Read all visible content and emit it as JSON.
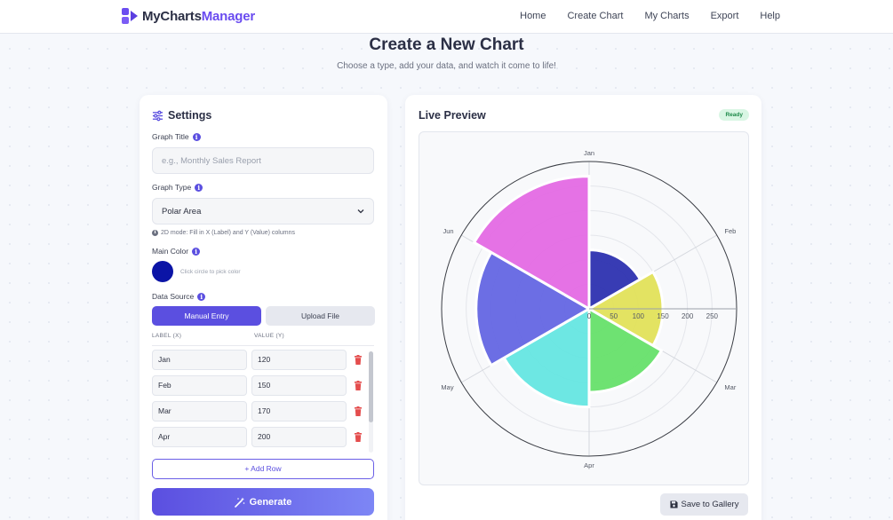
{
  "brand": {
    "part1": "MyCharts",
    "part2": "Manager",
    "accent_color": "#6a4cf0"
  },
  "nav": [
    {
      "id": "home",
      "label": "Home"
    },
    {
      "id": "create",
      "label": "Create Chart"
    },
    {
      "id": "mycharts",
      "label": "My Charts"
    },
    {
      "id": "export",
      "label": "Export"
    },
    {
      "id": "help",
      "label": "Help"
    }
  ],
  "page": {
    "title": "Create a New Chart",
    "subtitle": "Choose a type, add your data, and watch it come to life!"
  },
  "settings": {
    "title": "Settings",
    "graph_title_label": "Graph Title",
    "graph_title_placeholder": "e.g., Monthly Sales Report",
    "graph_title_value": "",
    "graph_type_label": "Graph Type",
    "graph_type_value": "Polar Area",
    "mode_hint": "2D mode: Fill in X (Label) and Y (Value) columns",
    "main_color_label": "Main Color",
    "main_color": "#0b14a6",
    "color_hint": "Click circle to pick color",
    "data_source_label": "Data Source",
    "tabs": [
      {
        "label": "Manual Entry",
        "active": true
      },
      {
        "label": "Upload File",
        "active": false
      }
    ],
    "col_x": "LABEL (X)",
    "col_y": "VALUE (Y)",
    "rows": [
      {
        "x": "Jan",
        "y": "120"
      },
      {
        "x": "Feb",
        "y": "150"
      },
      {
        "x": "Mar",
        "y": "170"
      },
      {
        "x": "Apr",
        "y": "200"
      }
    ],
    "add_row_label": "+ Add Row",
    "generate_label": "Generate",
    "icons": {
      "settings": "sliders-icon",
      "info": "info-icon",
      "delete": "trash-icon",
      "generate": "magic-wand-icon",
      "select": "chevron-down-icon"
    }
  },
  "preview": {
    "title": "Live Preview",
    "status": "Ready",
    "save_label": "Save to Gallery",
    "save_icon": "save-icon"
  },
  "chart_data": {
    "type": "polar-area",
    "categories": [
      "Jan",
      "Feb",
      "Mar",
      "Apr",
      "May",
      "Jun"
    ],
    "values": [
      120,
      150,
      170,
      200,
      230,
      270
    ],
    "colors": [
      "#2d32b0",
      "#e2e25a",
      "#66e06a",
      "#65e6e1",
      "#6466e3",
      "#e46ae4"
    ],
    "r_ticks": [
      0,
      50,
      100,
      150,
      200,
      250
    ],
    "r_max": 300,
    "grid": true,
    "legend": "none"
  }
}
